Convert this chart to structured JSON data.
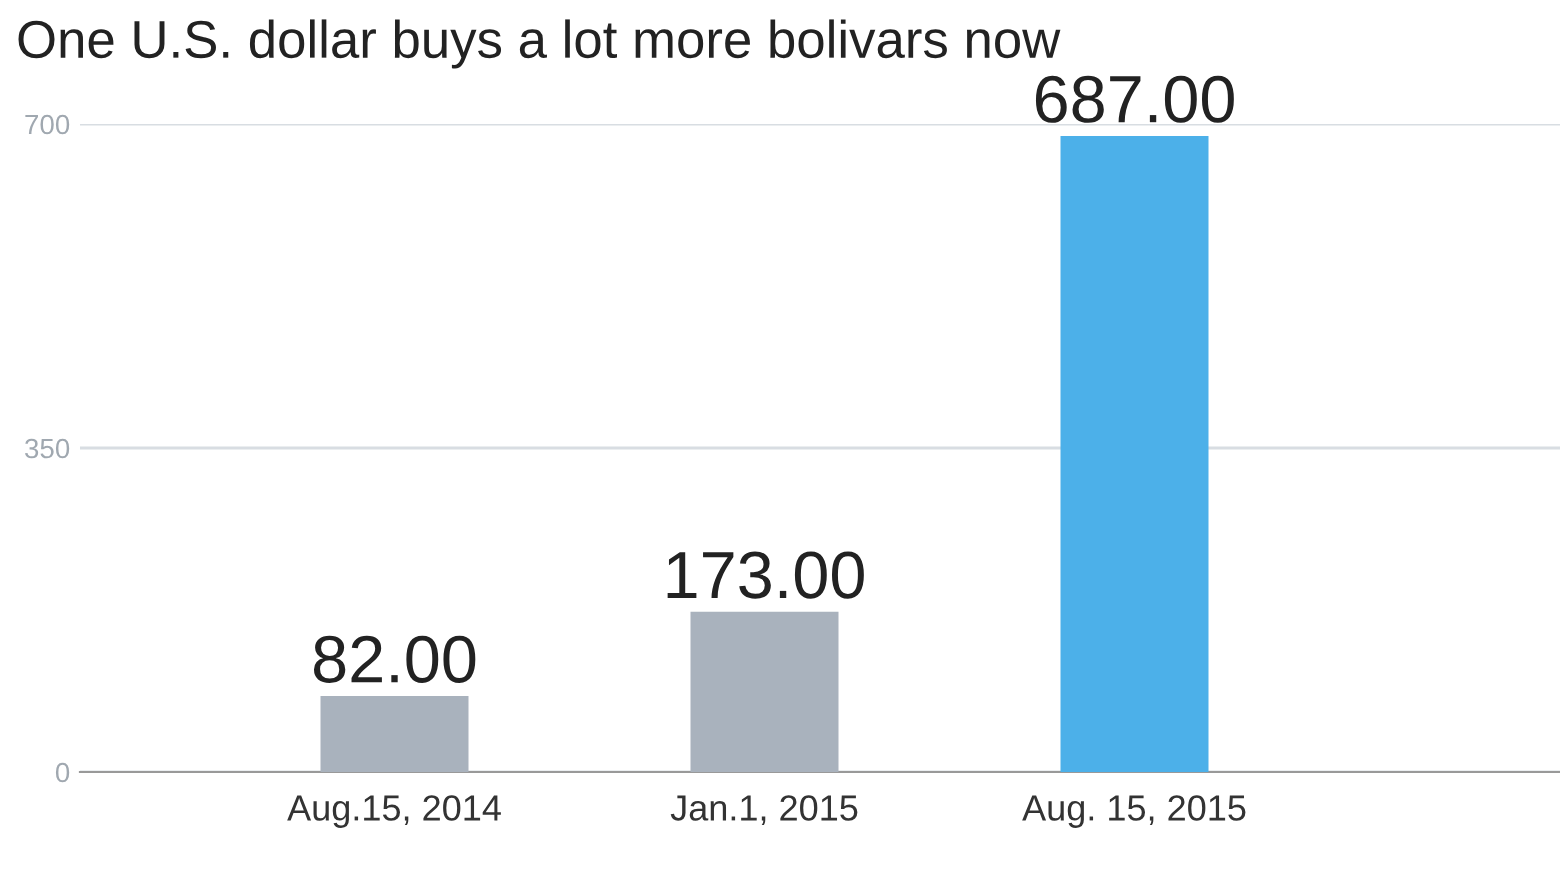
{
  "chart_data": {
    "type": "bar",
    "title": "One U.S. dollar buys a lot more bolivars now",
    "categories": [
      "Aug.15, 2014",
      "Jan.1, 2015",
      "Aug. 15, 2015"
    ],
    "values": [
      82,
      173,
      687
    ],
    "colors": [
      "#a9b2bd",
      "#a9b2bd",
      "#4cb0e9"
    ],
    "value_labels": [
      "82.00",
      "173.00",
      "687.00"
    ],
    "ylim": [
      0,
      700
    ],
    "yticks": [
      0,
      350,
      700
    ],
    "grid": "y"
  }
}
